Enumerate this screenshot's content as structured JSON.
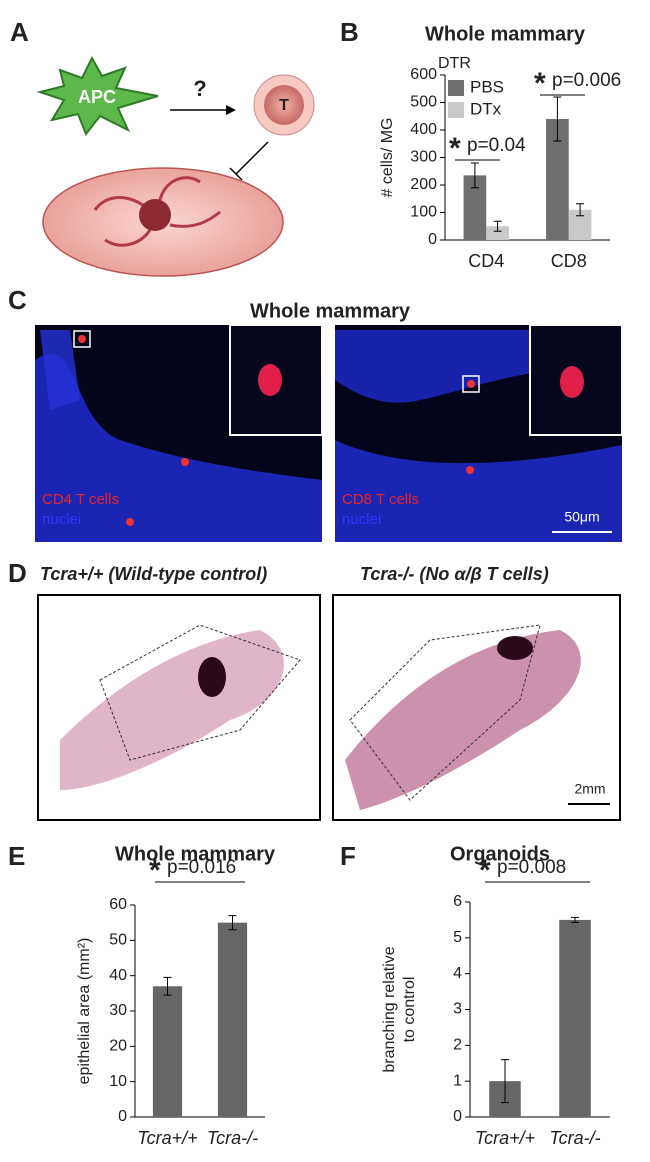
{
  "chart_data": [
    {
      "type": "bar",
      "title": "Whole mammary",
      "ylabel": "# cells/ MG",
      "legend_title": "DTR",
      "categories": [
        "CD4",
        "CD8"
      ],
      "series": [
        {
          "name": "PBS",
          "color": "#6e6e6e",
          "values": [
            235,
            440
          ],
          "errors": [
            45,
            80
          ]
        },
        {
          "name": "DTx",
          "color": "#c9c9c9",
          "values": [
            50,
            110
          ],
          "errors": [
            18,
            22
          ]
        }
      ],
      "ylim": [
        0,
        600
      ],
      "yticks": [
        0,
        100,
        200,
        300,
        400,
        500,
        600
      ],
      "annotations": [
        {
          "star": "*",
          "text": "p=0.04"
        },
        {
          "star": "*",
          "text": "p=0.006"
        }
      ]
    },
    {
      "type": "bar",
      "title": "Whole mammary",
      "ylabel": "epithelial area (mm²)",
      "categories": [
        "Tcra+/+",
        "Tcra-/-"
      ],
      "color": "#666666",
      "values": [
        37,
        55
      ],
      "errors": [
        2.5,
        2
      ],
      "ylim": [
        0,
        60
      ],
      "yticks": [
        0,
        10,
        20,
        30,
        40,
        50,
        60
      ],
      "annotations": [
        {
          "star": "*",
          "text": "p=0.016"
        }
      ]
    },
    {
      "type": "bar",
      "title": "Organoids",
      "ylabel": [
        "branching relative",
        "to control"
      ],
      "categories": [
        "Tcra+/+",
        "Tcra-/-"
      ],
      "color": "#666666",
      "values": [
        1,
        5.5
      ],
      "errors": [
        0.6,
        0.07
      ],
      "ylim": [
        0,
        6
      ],
      "yticks": [
        0,
        1,
        2,
        3,
        4,
        5,
        6
      ],
      "annotations": [
        {
          "star": "*",
          "text": "p=0.008"
        }
      ]
    }
  ],
  "panels": {
    "letters": [
      "A",
      "B",
      "C",
      "D",
      "E",
      "F"
    ],
    "a": {
      "apc": "APC",
      "question": "?",
      "t": "T"
    },
    "c": {
      "title": "Whole mammary",
      "left_label": "CD4 T cells",
      "left_nuclei": "nuclei",
      "right_label": "CD8 T cells",
      "right_nuclei": "nuclei",
      "scale": "50μm"
    },
    "d": {
      "left_title": "Tcra+/+ (Wild-type control)",
      "right_title": "Tcra-/- (No α/β T cells)",
      "scale": "2mm"
    }
  }
}
